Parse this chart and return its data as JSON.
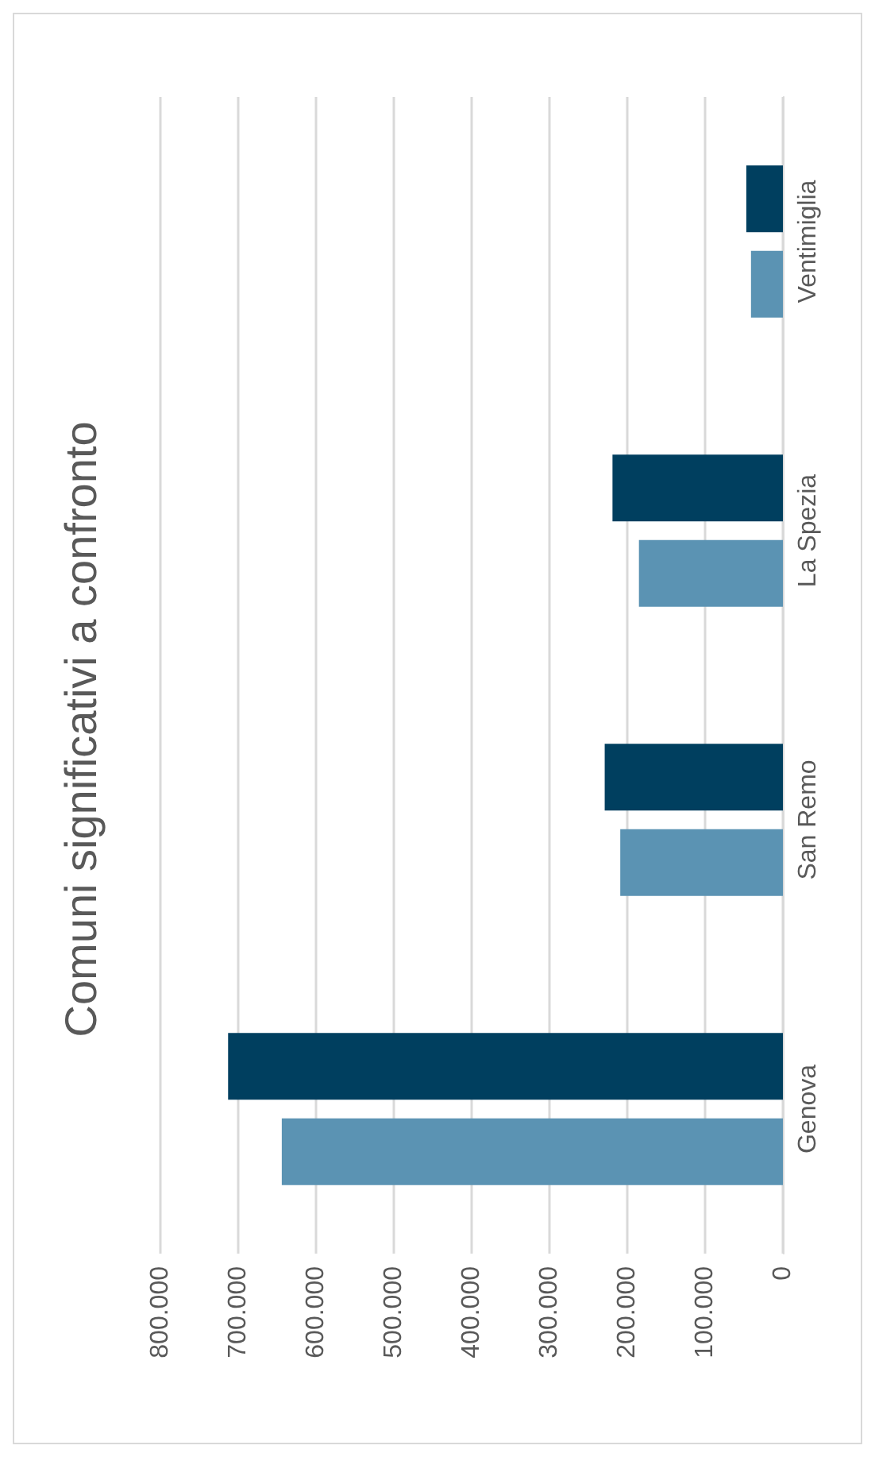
{
  "chart_data": {
    "type": "bar",
    "orientation": "horizontal",
    "title": "Comuni significativi a confronto",
    "categories": [
      "Ventimiglia",
      "La Spezia",
      "San Remo",
      "Genova"
    ],
    "series": [
      {
        "color": "#003f5f",
        "values": [
          47000,
          219000,
          229000,
          713000
        ]
      },
      {
        "color": "#5b93b3",
        "values": [
          41000,
          185000,
          209000,
          644000
        ]
      }
    ],
    "xlim": [
      800000,
      0
    ],
    "xticks": [
      {
        "value": 800000,
        "label": "800.000"
      },
      {
        "value": 700000,
        "label": "700.000"
      },
      {
        "value": 600000,
        "label": "600.000"
      },
      {
        "value": 500000,
        "label": "500.000"
      },
      {
        "value": 400000,
        "label": "400.000"
      },
      {
        "value": 300000,
        "label": "300.000"
      },
      {
        "value": 200000,
        "label": "200.000"
      },
      {
        "value": 100000,
        "label": "100.000"
      },
      0
    ],
    "grid": true
  }
}
